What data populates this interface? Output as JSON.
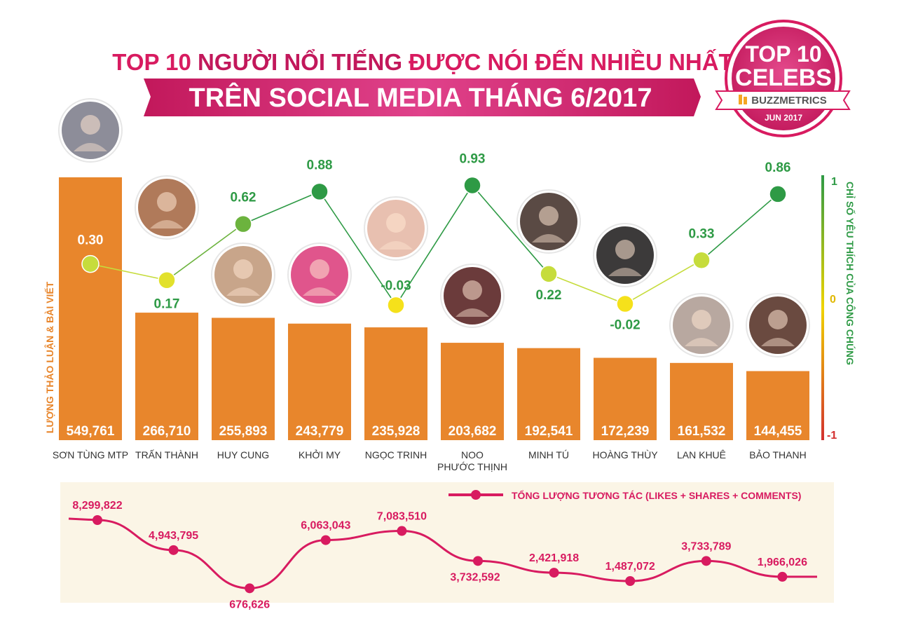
{
  "header": {
    "title_line1_a": "TOP 10 ",
    "title_line1_b": "NGƯỜI NỔI TIẾNG",
    "title_line1_c": " ĐƯỢC NÓI ĐẾN NHIỀU NHẤT",
    "title_line2": "TRÊN SOCIAL MEDIA THÁNG 6/2017"
  },
  "badge": {
    "line1": "TOP 10",
    "line2": "CELEBS",
    "brand": "BUZZMETRICS",
    "date": "JUN 2017"
  },
  "colors": {
    "primary_pink": "#d81b60",
    "bar_orange": "#e8862c",
    "line_green": "#2e9a45",
    "panel_bg": "#fbf5e6",
    "text_dark": "#333333"
  },
  "chart_data": [
    {
      "type": "bar",
      "ylabel": "LƯỢNG THẢO LUẬN & BÀI VIẾT",
      "categories": [
        "SƠN TÙNG MTP",
        "TRẤN THÀNH",
        "HUY CUNG",
        "KHỞI MY",
        "NGỌC TRINH",
        "NOO PHƯỚC THỊNH",
        "MINH TÚ",
        "HOÀNG THÙY",
        "LAN KHUÊ",
        "BẢO THANH"
      ],
      "values": [
        549761,
        266710,
        255893,
        243779,
        235928,
        203682,
        192541,
        172239,
        161532,
        144455
      ],
      "value_labels": [
        "549,761",
        "266,710",
        "255,893",
        "243,779",
        "235,928",
        "203,682",
        "192,541",
        "172,239",
        "161,532",
        "144,455"
      ],
      "color": "#e8862c"
    },
    {
      "type": "line",
      "y2label": "CHỈ SỐ YÊU THÍCH CỦA CÔNG CHÚNG",
      "ylim": [
        -1,
        1
      ],
      "ticks": [
        "1",
        "0",
        "-1"
      ],
      "categories": [
        "SƠN TÙNG MTP",
        "TRẤN THÀNH",
        "HUY CUNG",
        "KHỞI MY",
        "NGỌC TRINH",
        "NOO PHƯỚC THỊNH",
        "MINH TÚ",
        "HOÀNG THÙY",
        "LAN KHUÊ",
        "BẢO THANH"
      ],
      "values": [
        0.3,
        0.17,
        0.62,
        0.88,
        -0.03,
        0.93,
        0.22,
        -0.02,
        0.33,
        0.86
      ],
      "value_labels": [
        "0.30",
        "0.17",
        "0.62",
        "0.88",
        "-0.03",
        "0.93",
        "0.22",
        "-0.02",
        "0.33",
        "0.86"
      ]
    },
    {
      "type": "line",
      "legend": "TỔNG LƯỢNG TƯƠNG TÁC (LIKES + SHARES + COMMENTS)",
      "legend_position": "top-right",
      "categories": [
        "SƠN TÙNG MTP",
        "TRẤN THÀNH",
        "HUY CUNG",
        "KHỞI MY",
        "NGỌC TRINH",
        "NOO PHƯỚC THỊNH",
        "MINH TÚ",
        "HOÀNG THÙY",
        "LAN KHUÊ",
        "BẢO THANH"
      ],
      "values": [
        8299822,
        4943795,
        676626,
        6063043,
        7083510,
        3732592,
        2421918,
        1487072,
        3733789,
        1966026
      ],
      "value_labels": [
        "8,299,822",
        "4,943,795",
        "676,626",
        "6,063,043",
        "7,083,510",
        "3,732,592",
        "2,421,918",
        "1,487,072",
        "3,733,789",
        "1,966,026"
      ],
      "color": "#d81b60"
    }
  ]
}
